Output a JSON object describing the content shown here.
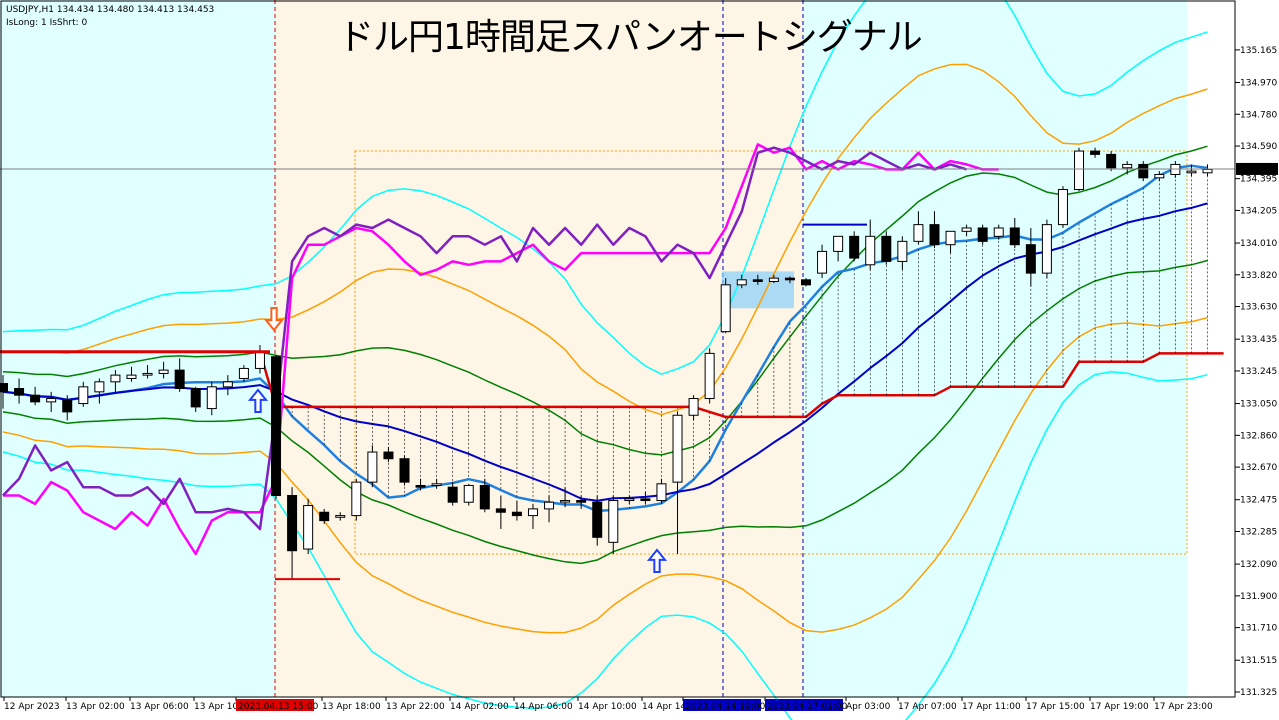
{
  "header": {
    "symbol_line": "USDJPY,H1  134.434 134.480 134.413 134.453",
    "status_line": "IsLong: 1 IsShrt: 0",
    "headline": "ドル円1時間足スパンオートシグナル"
  },
  "chart_data": {
    "type": "candlestick",
    "title": "ドル円1時間足スパンオートシグナル",
    "ylim": [
      131.325,
      135.26
    ],
    "y_ticks": [
      "135.165",
      "134.970",
      "134.780",
      "134.590",
      "134.395",
      "134.205",
      "134.010",
      "133.820",
      "133.630",
      "133.435",
      "133.245",
      "133.050",
      "132.860",
      "132.670",
      "132.475",
      "132.285",
      "132.090",
      "131.900",
      "131.710",
      "131.515",
      "131.325"
    ],
    "x_ticks": [
      "12 Apr 2023",
      "13 Apr 02:00",
      "13 Apr 06:00",
      "13 Apr 10",
      "2023.04.13 15:00",
      "13 Apr 18:00",
      "13 Apr 22:00",
      "14 Apr 02:00",
      "14 Apr 06:00",
      "14 Apr 10:00",
      "14 Apr 14",
      "2023.04.14 19:00",
      "2023.04.17 01:00",
      "Apr 03:00",
      "17 Apr 07:00",
      "17 Apr 11:00",
      "17 Apr 15:00",
      "17 Apr 19:00",
      "17 Apr 23:00"
    ],
    "current_price": "134.453",
    "colors": {
      "background": "#e0ffff",
      "zone_fill": "#fdf5e6",
      "bull": "#ffffff",
      "bear": "#000000",
      "red_line": "#e00000",
      "blue_line": "#0000c8",
      "mid_blue": "#2080e0",
      "magenta": "#ff00ff",
      "purple": "#8020c0",
      "orange": "#ffa000",
      "cyan": "#00ffff",
      "green": "#008000"
    },
    "candles": [
      {
        "o": 133.17,
        "h": 133.22,
        "l": 133.02,
        "c": 133.12
      },
      {
        "o": 133.14,
        "h": 133.2,
        "l": 133.05,
        "c": 133.1
      },
      {
        "o": 133.1,
        "h": 133.15,
        "l": 133.04,
        "c": 133.06
      },
      {
        "o": 133.06,
        "h": 133.12,
        "l": 133.0,
        "c": 133.08
      },
      {
        "o": 133.07,
        "h": 133.1,
        "l": 132.95,
        "c": 133.0
      },
      {
        "o": 133.05,
        "h": 133.18,
        "l": 133.03,
        "c": 133.15
      },
      {
        "o": 133.12,
        "h": 133.2,
        "l": 133.05,
        "c": 133.18
      },
      {
        "o": 133.18,
        "h": 133.25,
        "l": 133.12,
        "c": 133.22
      },
      {
        "o": 133.2,
        "h": 133.27,
        "l": 133.18,
        "c": 133.22
      },
      {
        "o": 133.22,
        "h": 133.28,
        "l": 133.2,
        "c": 133.23
      },
      {
        "o": 133.23,
        "h": 133.3,
        "l": 133.2,
        "c": 133.25
      },
      {
        "o": 133.25,
        "h": 133.32,
        "l": 133.12,
        "c": 133.14
      },
      {
        "o": 133.14,
        "h": 133.15,
        "l": 133.0,
        "c": 133.03
      },
      {
        "o": 133.02,
        "h": 133.18,
        "l": 132.98,
        "c": 133.15
      },
      {
        "o": 133.15,
        "h": 133.22,
        "l": 133.1,
        "c": 133.18
      },
      {
        "o": 133.2,
        "h": 133.28,
        "l": 133.18,
        "c": 133.26
      },
      {
        "o": 133.26,
        "h": 133.4,
        "l": 133.23,
        "c": 133.36
      },
      {
        "o": 133.33,
        "h": 133.34,
        "l": 132.48,
        "c": 132.5
      },
      {
        "o": 132.5,
        "h": 132.55,
        "l": 132.0,
        "c": 132.17
      },
      {
        "o": 132.18,
        "h": 132.48,
        "l": 132.15,
        "c": 132.44
      },
      {
        "o": 132.4,
        "h": 132.42,
        "l": 132.33,
        "c": 132.35
      },
      {
        "o": 132.37,
        "h": 132.4,
        "l": 132.35,
        "c": 132.38
      },
      {
        "o": 132.38,
        "h": 132.6,
        "l": 132.35,
        "c": 132.58
      },
      {
        "o": 132.58,
        "h": 132.8,
        "l": 132.55,
        "c": 132.76
      },
      {
        "o": 132.76,
        "h": 132.79,
        "l": 132.7,
        "c": 132.72
      },
      {
        "o": 132.72,
        "h": 132.74,
        "l": 132.56,
        "c": 132.58
      },
      {
        "o": 132.56,
        "h": 132.6,
        "l": 132.53,
        "c": 132.55
      },
      {
        "o": 132.56,
        "h": 132.6,
        "l": 132.54,
        "c": 132.57
      },
      {
        "o": 132.55,
        "h": 132.58,
        "l": 132.44,
        "c": 132.46
      },
      {
        "o": 132.46,
        "h": 132.57,
        "l": 132.44,
        "c": 132.56
      },
      {
        "o": 132.56,
        "h": 132.6,
        "l": 132.4,
        "c": 132.42
      },
      {
        "o": 132.42,
        "h": 132.5,
        "l": 132.3,
        "c": 132.4
      },
      {
        "o": 132.4,
        "h": 132.47,
        "l": 132.35,
        "c": 132.38
      },
      {
        "o": 132.38,
        "h": 132.45,
        "l": 132.3,
        "c": 132.42
      },
      {
        "o": 132.42,
        "h": 132.5,
        "l": 132.34,
        "c": 132.46
      },
      {
        "o": 132.47,
        "h": 132.55,
        "l": 132.43,
        "c": 132.47
      },
      {
        "o": 132.47,
        "h": 132.5,
        "l": 132.42,
        "c": 132.46
      },
      {
        "o": 132.46,
        "h": 132.5,
        "l": 132.2,
        "c": 132.25
      },
      {
        "o": 132.22,
        "h": 132.5,
        "l": 132.15,
        "c": 132.47
      },
      {
        "o": 132.47,
        "h": 132.5,
        "l": 132.45,
        "c": 132.48
      },
      {
        "o": 132.48,
        "h": 132.52,
        "l": 132.45,
        "c": 132.47
      },
      {
        "o": 132.47,
        "h": 132.6,
        "l": 132.45,
        "c": 132.57
      },
      {
        "o": 132.58,
        "h": 133.0,
        "l": 132.15,
        "c": 132.98
      },
      {
        "o": 132.98,
        "h": 133.1,
        "l": 132.95,
        "c": 133.08
      },
      {
        "o": 133.08,
        "h": 133.38,
        "l": 133.05,
        "c": 133.35
      },
      {
        "o": 133.48,
        "h": 133.8,
        "l": 133.47,
        "c": 133.76
      },
      {
        "o": 133.76,
        "h": 133.82,
        "l": 133.74,
        "c": 133.79
      },
      {
        "o": 133.79,
        "h": 133.82,
        "l": 133.76,
        "c": 133.78
      },
      {
        "o": 133.78,
        "h": 133.82,
        "l": 133.77,
        "c": 133.8
      },
      {
        "o": 133.8,
        "h": 133.81,
        "l": 133.77,
        "c": 133.79
      },
      {
        "o": 133.79,
        "h": 133.8,
        "l": 133.75,
        "c": 133.76
      },
      {
        "o": 133.83,
        "h": 134.0,
        "l": 133.8,
        "c": 133.96
      },
      {
        "o": 133.96,
        "h": 134.05,
        "l": 133.9,
        "c": 134.05
      },
      {
        "o": 134.05,
        "h": 134.08,
        "l": 133.9,
        "c": 133.92
      },
      {
        "o": 133.88,
        "h": 134.15,
        "l": 133.85,
        "c": 134.05
      },
      {
        "o": 134.05,
        "h": 134.08,
        "l": 133.88,
        "c": 133.9
      },
      {
        "o": 133.9,
        "h": 134.05,
        "l": 133.85,
        "c": 134.02
      },
      {
        "o": 134.02,
        "h": 134.2,
        "l": 134.0,
        "c": 134.12
      },
      {
        "o": 134.12,
        "h": 134.2,
        "l": 133.98,
        "c": 134.0
      },
      {
        "o": 134.0,
        "h": 134.08,
        "l": 133.95,
        "c": 134.08
      },
      {
        "o": 134.08,
        "h": 134.12,
        "l": 134.05,
        "c": 134.1
      },
      {
        "o": 134.1,
        "h": 134.12,
        "l": 134.0,
        "c": 134.02
      },
      {
        "o": 134.05,
        "h": 134.12,
        "l": 134.03,
        "c": 134.1
      },
      {
        "o": 134.1,
        "h": 134.16,
        "l": 133.98,
        "c": 134.0
      },
      {
        "o": 134.0,
        "h": 134.1,
        "l": 133.75,
        "c": 133.83
      },
      {
        "o": 133.83,
        "h": 134.15,
        "l": 133.8,
        "c": 134.12
      },
      {
        "o": 134.12,
        "h": 134.35,
        "l": 134.1,
        "c": 134.33
      },
      {
        "o": 134.33,
        "h": 134.58,
        "l": 134.32,
        "c": 134.56
      },
      {
        "o": 134.56,
        "h": 134.58,
        "l": 134.52,
        "c": 134.54
      },
      {
        "o": 134.54,
        "h": 134.56,
        "l": 134.44,
        "c": 134.46
      },
      {
        "o": 134.46,
        "h": 134.5,
        "l": 134.42,
        "c": 134.48
      },
      {
        "o": 134.48,
        "h": 134.5,
        "l": 134.38,
        "c": 134.4
      },
      {
        "o": 134.4,
        "h": 134.44,
        "l": 134.38,
        "c": 134.42
      },
      {
        "o": 134.42,
        "h": 134.5,
        "l": 134.4,
        "c": 134.48
      },
      {
        "o": 134.43,
        "h": 134.48,
        "l": 134.41,
        "c": 134.44
      },
      {
        "o": 134.43,
        "h": 134.48,
        "l": 134.41,
        "c": 134.45
      }
    ],
    "magenta_line": [
      132.5,
      132.5,
      132.45,
      132.58,
      132.53,
      132.4,
      132.35,
      132.3,
      132.4,
      132.32,
      132.48,
      132.3,
      132.15,
      132.35,
      132.4,
      132.4,
      132.4,
      132.6,
      133.8,
      134.0,
      134.0,
      134.05,
      134.1,
      134.08,
      134.0,
      133.9,
      133.82,
      133.85,
      133.9,
      133.88,
      133.9,
      133.9,
      133.95,
      134.0,
      133.9,
      133.85,
      133.95,
      133.95,
      133.95,
      133.95,
      133.95,
      133.95,
      133.95,
      133.95,
      133.95,
      134.1,
      134.35,
      134.6,
      134.55,
      134.58,
      134.45,
      134.5,
      134.45,
      134.5,
      134.48,
      134.45,
      134.45,
      134.55,
      134.45,
      134.5,
      134.48,
      134.45,
      134.45
    ],
    "purple_line": [
      132.5,
      132.6,
      132.8,
      132.65,
      132.7,
      132.55,
      132.55,
      132.5,
      132.5,
      132.55,
      132.45,
      132.6,
      132.4,
      132.4,
      132.42,
      132.4,
      132.3,
      133.0,
      133.9,
      134.05,
      134.1,
      134.05,
      134.12,
      134.1,
      134.15,
      134.1,
      134.05,
      133.95,
      134.05,
      134.05,
      134.0,
      134.05,
      133.9,
      134.1,
      134.0,
      134.1,
      134.0,
      134.12,
      134.0,
      134.1,
      134.05,
      133.9,
      134.0,
      133.95,
      133.8,
      134.0,
      134.2,
      134.55,
      134.58,
      134.55,
      134.5,
      134.45,
      134.5,
      134.48,
      134.55,
      134.5,
      134.45,
      134.48,
      134.45,
      134.48,
      134.45
    ],
    "span_red_levels": [
      133.36,
      133.36,
      133.36,
      133.36,
      133.36,
      133.36,
      133.36,
      133.36,
      133.36,
      133.36,
      133.36,
      133.36,
      133.36,
      133.36,
      133.36,
      133.36,
      133.36,
      133.03,
      133.03,
      133.03,
      133.03,
      133.03,
      133.03,
      133.03,
      133.03,
      133.03,
      133.03,
      133.03,
      133.03,
      133.03,
      133.03,
      133.03,
      133.03,
      133.03,
      133.03,
      133.03,
      133.03,
      133.03,
      133.03,
      133.03,
      133.03,
      133.03,
      133.03,
      133.03,
      133.0,
      132.97,
      132.97,
      132.97,
      132.97,
      132.97,
      132.97,
      133.05,
      133.1,
      133.1,
      133.1,
      133.1,
      133.1,
      133.1,
      133.1,
      133.15,
      133.15,
      133.15,
      133.15,
      133.15,
      133.15,
      133.15,
      133.15,
      133.3,
      133.3,
      133.3,
      133.3,
      133.3,
      133.35,
      133.35,
      133.35,
      133.35,
      133.35
    ]
  }
}
